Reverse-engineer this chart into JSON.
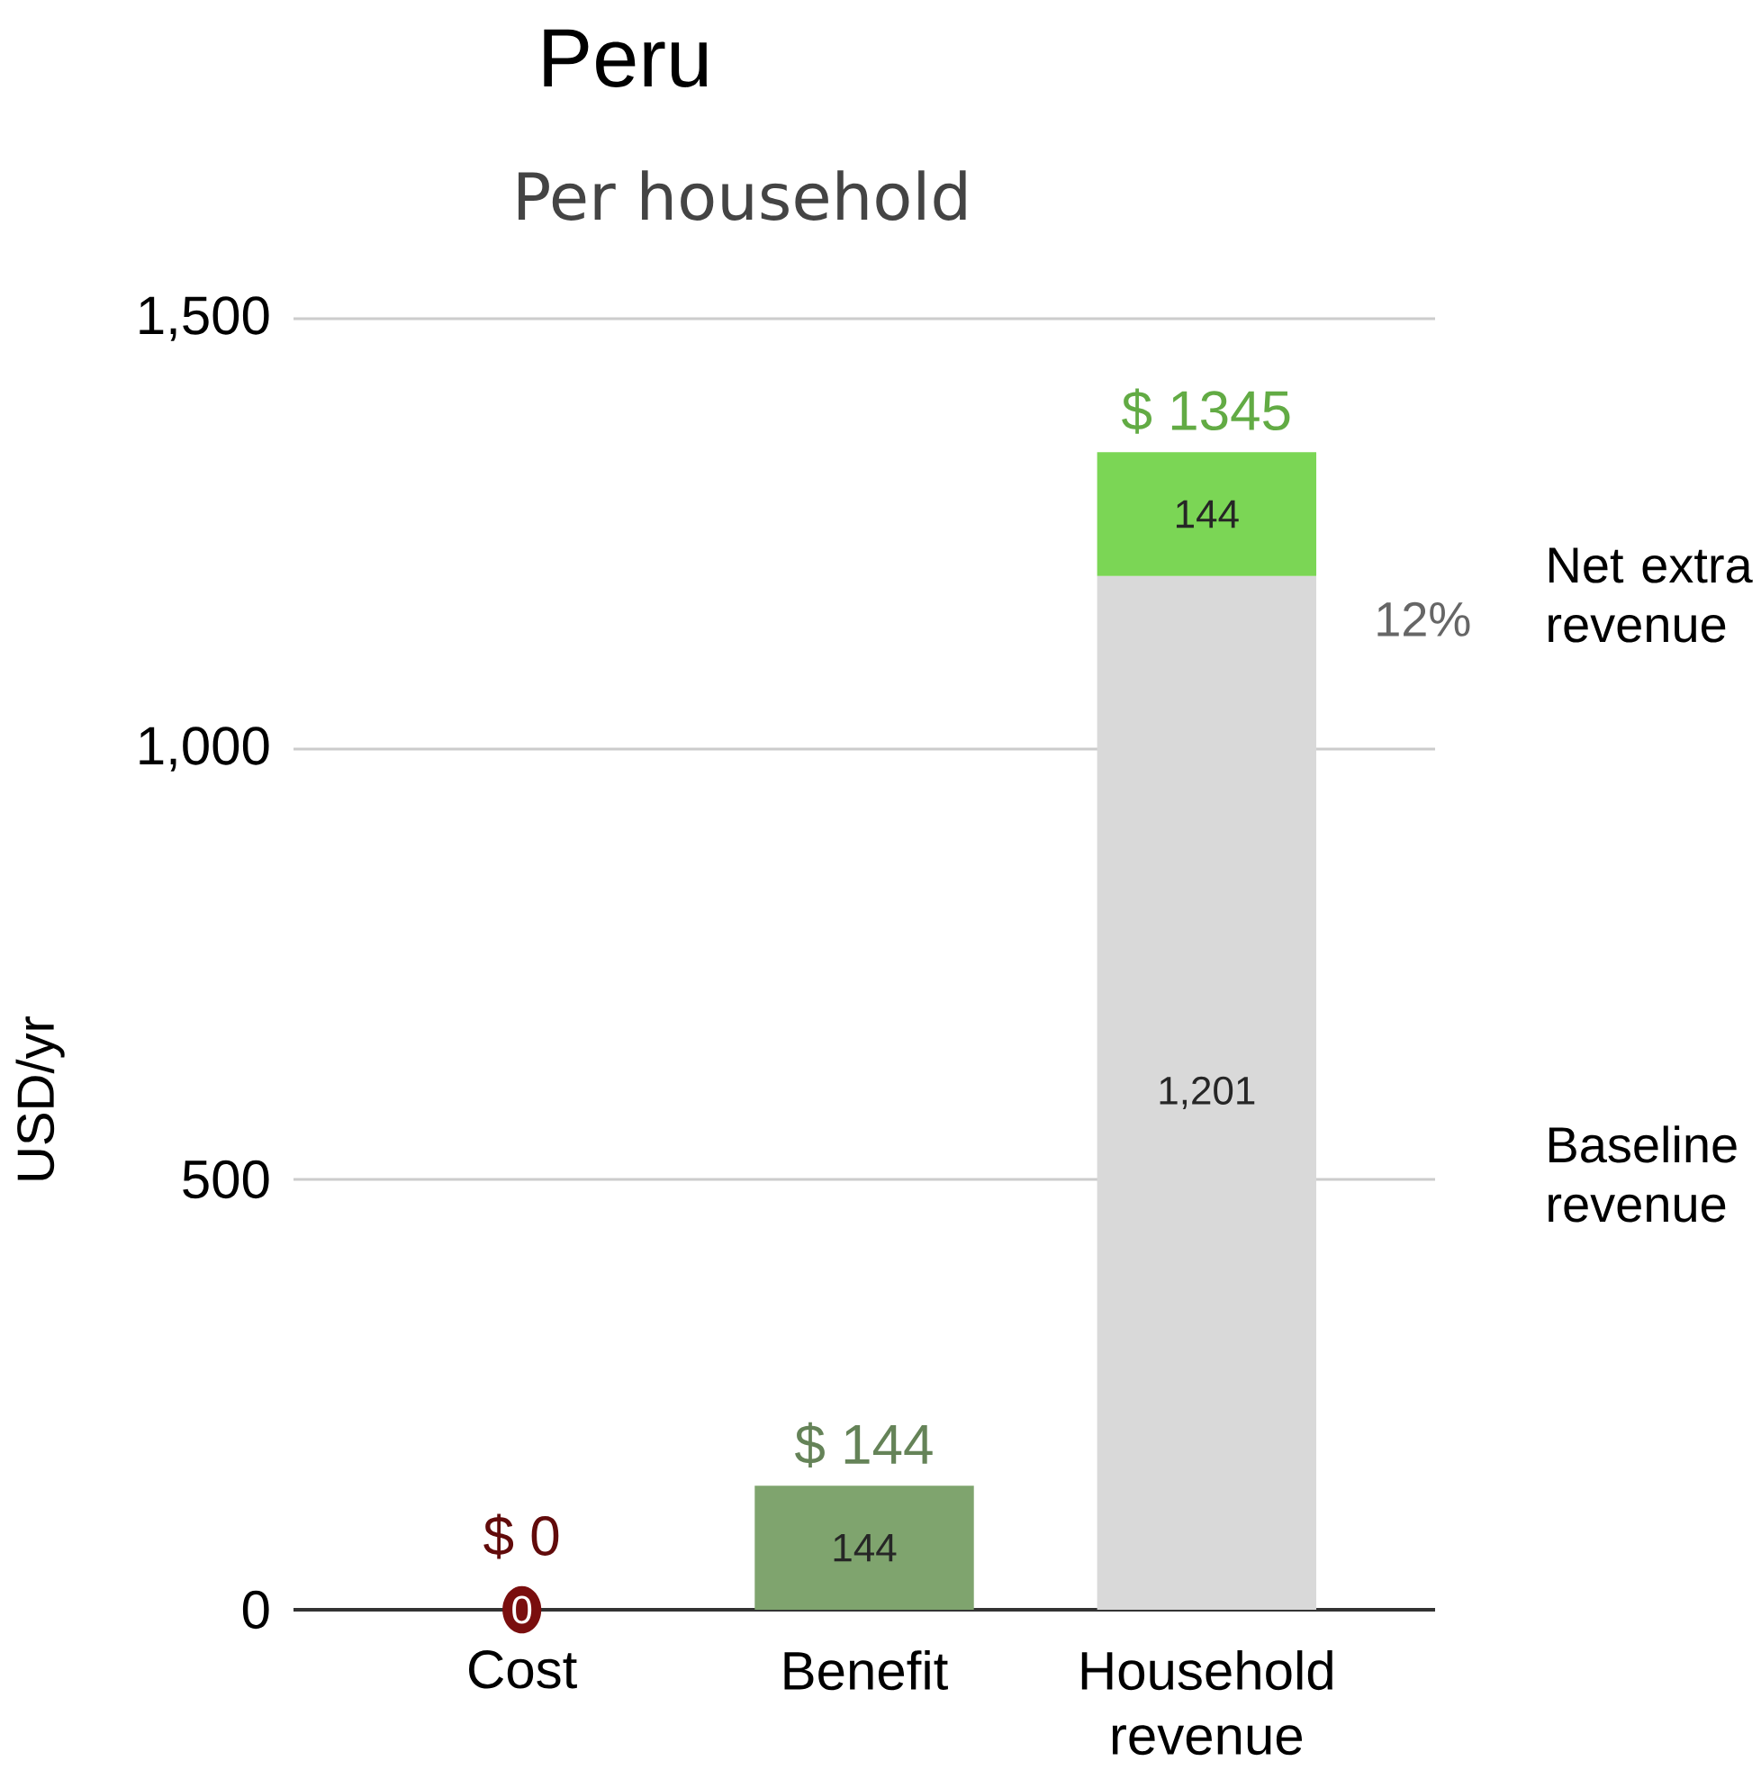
{
  "chart_data": {
    "type": "bar",
    "title": "Peru",
    "subtitle": "Per household",
    "ylabel": "USD/yr",
    "categories": [
      "Cost",
      "Benefit",
      "Household revenue"
    ],
    "stacked": true,
    "series": [
      {
        "name": "Baseline revenue",
        "color": "#d9d9d9",
        "values": [
          null,
          null,
          1201
        ],
        "value_labels": [
          null,
          null,
          "1,201"
        ]
      },
      {
        "color": "#7a0e0e",
        "values": [
          0,
          null,
          null
        ],
        "value_labels": [
          "0",
          null,
          null
        ]
      },
      {
        "color": "#7fa46e",
        "values": [
          null,
          144,
          null
        ],
        "value_labels": [
          null,
          "144",
          null
        ]
      },
      {
        "name": "Net extra revenue",
        "color": "#7bd655",
        "values": [
          null,
          null,
          144
        ],
        "value_labels": [
          null,
          null,
          "144"
        ]
      }
    ],
    "totals": [
      "$ 0",
      "$ 144",
      "$ 1345"
    ],
    "annotations": [
      "12%"
    ],
    "ylim": [
      0,
      1500
    ],
    "yticks": [
      0,
      500,
      {
        "value": 1000,
        "label": "1,000"
      },
      {
        "value": 1500,
        "label": "1,500"
      }
    ],
    "grid": "y"
  }
}
